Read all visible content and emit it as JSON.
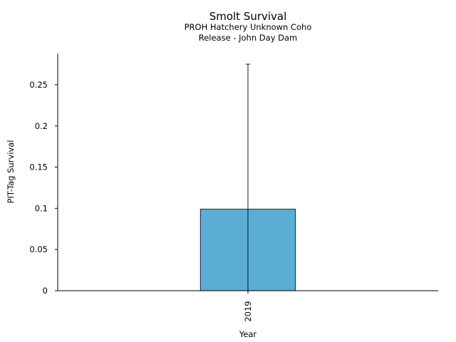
{
  "chart_data": {
    "type": "bar",
    "title": "Smolt Survival",
    "subtitle": [
      "PROH Hatchery Unknown Coho",
      "Release - John Day Dam"
    ],
    "xlabel": "Year",
    "ylabel": "PIT-Tag Survival",
    "categories": [
      "2019"
    ],
    "values": [
      0.099
    ],
    "error_upper": [
      0.275
    ],
    "ylim": [
      0,
      0.288
    ],
    "yticks": [
      0,
      0.05,
      0.1,
      0.15,
      0.2,
      0.25
    ],
    "ytick_labels": [
      "0",
      "0.05",
      "0.1",
      "0.15",
      "0.2",
      "0.25"
    ],
    "bar_color": "#5badd6",
    "grid": false,
    "legend": "none"
  }
}
